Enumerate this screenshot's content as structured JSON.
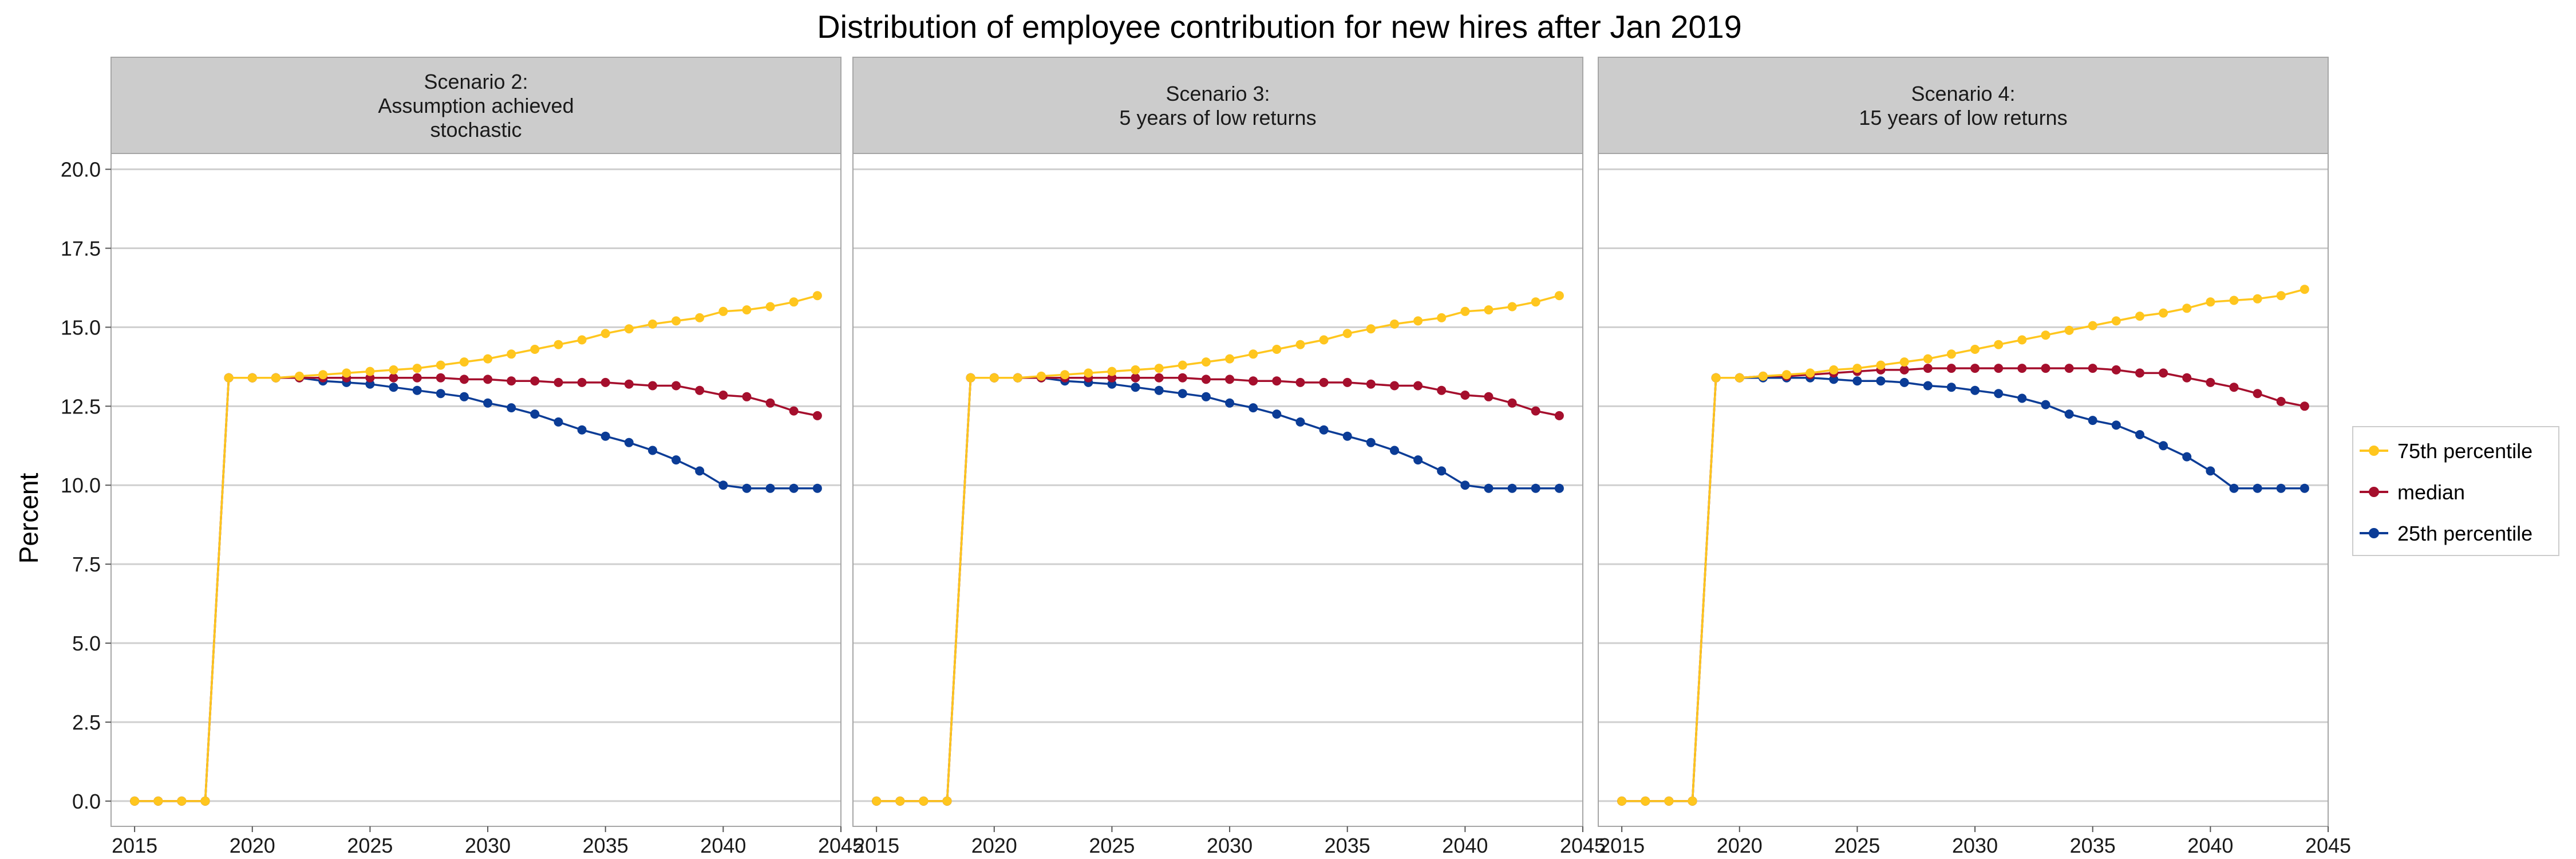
{
  "chart_data": {
    "type": "line",
    "title": "Distribution of employee contribution for new hires after Jan 2019",
    "xlabel": "",
    "ylabel": "Percent",
    "xlim": [
      2014,
      2045
    ],
    "ylim": [
      -0.8,
      20.5
    ],
    "x_ticks": [
      2015,
      2020,
      2025,
      2030,
      2035,
      2040,
      2045
    ],
    "y_ticks": [
      0.0,
      2.5,
      5.0,
      7.5,
      10.0,
      12.5,
      15.0,
      17.5,
      20.0
    ],
    "y_tick_labels": [
      "0.0",
      "2.5",
      "5.0",
      "7.5",
      "10.0",
      "12.5",
      "15.0",
      "17.5",
      "20.0"
    ],
    "grid": true,
    "legend_position": "right",
    "x": [
      2015,
      2016,
      2017,
      2018,
      2019,
      2020,
      2021,
      2022,
      2023,
      2024,
      2025,
      2026,
      2027,
      2028,
      2029,
      2030,
      2031,
      2032,
      2033,
      2034,
      2035,
      2036,
      2037,
      2038,
      2039,
      2040,
      2041,
      2042,
      2043,
      2044
    ],
    "series_styles": [
      {
        "name": "75th percentile",
        "color": "#FFC61E"
      },
      {
        "name": "median",
        "color": "#A50F2D"
      },
      {
        "name": "25th percentile",
        "color": "#0B3C96"
      }
    ],
    "panels": [
      {
        "strip": [
          "Scenario 2:",
          "Assumption achieved",
          "stochastic"
        ],
        "series": [
          {
            "name": "75th percentile",
            "values": [
              0,
              0,
              0,
              0,
              13.4,
              13.4,
              13.4,
              13.45,
              13.5,
              13.55,
              13.6,
              13.65,
              13.7,
              13.8,
              13.9,
              14.0,
              14.15,
              14.3,
              14.45,
              14.6,
              14.8,
              14.95,
              15.1,
              15.2,
              15.3,
              15.5,
              15.55,
              15.65,
              15.8,
              16.0
            ]
          },
          {
            "name": "median",
            "values": [
              0,
              0,
              0,
              0,
              13.4,
              13.4,
              13.4,
              13.4,
              13.4,
              13.4,
              13.4,
              13.4,
              13.4,
              13.4,
              13.35,
              13.35,
              13.3,
              13.3,
              13.25,
              13.25,
              13.25,
              13.2,
              13.15,
              13.15,
              13.0,
              12.85,
              12.8,
              12.6,
              12.35,
              12.2
            ]
          },
          {
            "name": "25th percentile",
            "values": [
              0,
              0,
              0,
              0,
              13.4,
              13.4,
              13.4,
              13.4,
              13.3,
              13.25,
              13.2,
              13.1,
              13.0,
              12.9,
              12.8,
              12.6,
              12.45,
              12.25,
              12.0,
              11.75,
              11.55,
              11.35,
              11.1,
              10.8,
              10.45,
              10.0,
              9.9,
              9.9,
              9.9,
              9.9
            ]
          }
        ]
      },
      {
        "strip": [
          "Scenario 3:",
          "5 years of low returns"
        ],
        "series": [
          {
            "name": "75th percentile",
            "values": [
              0,
              0,
              0,
              0,
              13.4,
              13.4,
              13.4,
              13.45,
              13.5,
              13.55,
              13.6,
              13.65,
              13.7,
              13.8,
              13.9,
              14.0,
              14.15,
              14.3,
              14.45,
              14.6,
              14.8,
              14.95,
              15.1,
              15.2,
              15.3,
              15.5,
              15.55,
              15.65,
              15.8,
              16.0
            ]
          },
          {
            "name": "median",
            "values": [
              0,
              0,
              0,
              0,
              13.4,
              13.4,
              13.4,
              13.4,
              13.4,
              13.4,
              13.4,
              13.4,
              13.4,
              13.4,
              13.35,
              13.35,
              13.3,
              13.3,
              13.25,
              13.25,
              13.25,
              13.2,
              13.15,
              13.15,
              13.0,
              12.85,
              12.8,
              12.6,
              12.35,
              12.2
            ]
          },
          {
            "name": "25th percentile",
            "values": [
              0,
              0,
              0,
              0,
              13.4,
              13.4,
              13.4,
              13.4,
              13.3,
              13.25,
              13.2,
              13.1,
              13.0,
              12.9,
              12.8,
              12.6,
              12.45,
              12.25,
              12.0,
              11.75,
              11.55,
              11.35,
              11.1,
              10.8,
              10.45,
              10.0,
              9.9,
              9.9,
              9.9,
              9.9
            ]
          }
        ]
      },
      {
        "strip": [
          "Scenario 4:",
          "15 years of low returns"
        ],
        "series": [
          {
            "name": "75th percentile",
            "values": [
              0,
              0,
              0,
              0,
              13.4,
              13.4,
              13.45,
              13.5,
              13.55,
              13.65,
              13.7,
              13.8,
              13.9,
              14.0,
              14.15,
              14.3,
              14.45,
              14.6,
              14.75,
              14.9,
              15.05,
              15.2,
              15.35,
              15.45,
              15.6,
              15.8,
              15.85,
              15.9,
              16.0,
              16.2
            ]
          },
          {
            "name": "median",
            "values": [
              0,
              0,
              0,
              0,
              13.4,
              13.4,
              13.45,
              13.45,
              13.5,
              13.55,
              13.6,
              13.65,
              13.65,
              13.7,
              13.7,
              13.7,
              13.7,
              13.7,
              13.7,
              13.7,
              13.7,
              13.65,
              13.55,
              13.55,
              13.4,
              13.25,
              13.1,
              12.9,
              12.65,
              12.5
            ]
          },
          {
            "name": "25th percentile",
            "values": [
              0,
              0,
              0,
              0,
              13.4,
              13.4,
              13.4,
              13.4,
              13.4,
              13.35,
              13.3,
              13.3,
              13.25,
              13.15,
              13.1,
              13.0,
              12.9,
              12.75,
              12.55,
              12.25,
              12.05,
              11.9,
              11.6,
              11.25,
              10.9,
              10.45,
              9.9,
              9.9,
              9.9,
              9.9
            ]
          }
        ]
      }
    ]
  }
}
